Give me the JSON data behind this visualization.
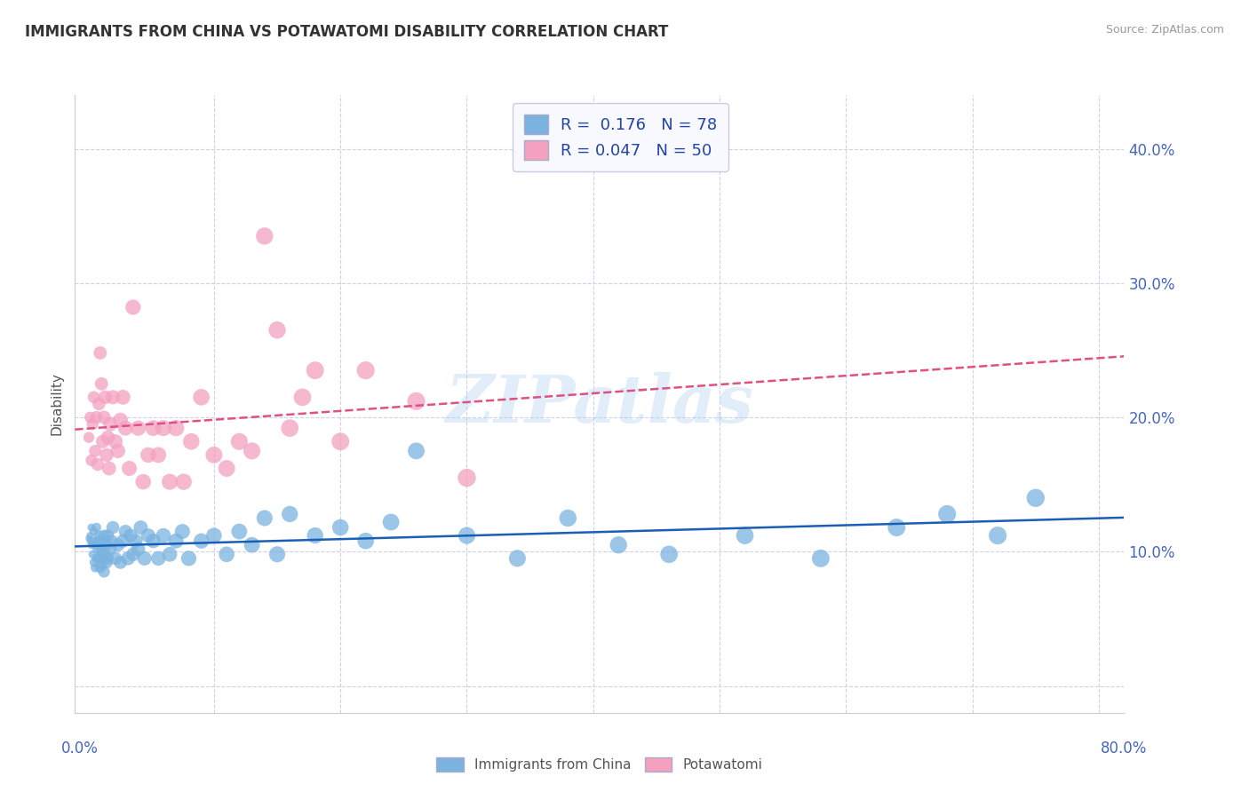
{
  "title": "IMMIGRANTS FROM CHINA VS POTAWATOMI DISABILITY CORRELATION CHART",
  "source": "Source: ZipAtlas.com",
  "ylabel": "Disability",
  "yticks": [
    0.0,
    0.1,
    0.2,
    0.3,
    0.4
  ],
  "ytick_labels": [
    "",
    "10.0%",
    "20.0%",
    "30.0%",
    "40.0%"
  ],
  "xticks": [
    0.0,
    0.1,
    0.2,
    0.3,
    0.4,
    0.5,
    0.6,
    0.7,
    0.8
  ],
  "xlim": [
    -0.01,
    0.82
  ],
  "ylim": [
    -0.02,
    0.44
  ],
  "watermark": "ZIPatlas",
  "series": [
    {
      "name": "Immigrants from China",
      "R": 0.176,
      "N": 78,
      "color": "#7ab3e0",
      "line_color": "#1a5fb4",
      "line_style": "solid",
      "x": [
        0.001,
        0.002,
        0.002,
        0.003,
        0.003,
        0.004,
        0.004,
        0.005,
        0.005,
        0.006,
        0.006,
        0.007,
        0.007,
        0.008,
        0.008,
        0.009,
        0.009,
        0.01,
        0.01,
        0.011,
        0.011,
        0.012,
        0.012,
        0.013,
        0.013,
        0.014,
        0.014,
        0.015,
        0.015,
        0.016,
        0.016,
        0.018,
        0.019,
        0.02,
        0.022,
        0.024,
        0.026,
        0.028,
        0.03,
        0.032,
        0.034,
        0.036,
        0.038,
        0.04,
        0.042,
        0.045,
        0.048,
        0.052,
        0.056,
        0.06,
        0.065,
        0.07,
        0.075,
        0.08,
        0.09,
        0.1,
        0.11,
        0.12,
        0.13,
        0.14,
        0.15,
        0.16,
        0.18,
        0.2,
        0.22,
        0.24,
        0.26,
        0.3,
        0.34,
        0.38,
        0.42,
        0.46,
        0.52,
        0.58,
        0.64,
        0.68,
        0.72,
        0.75
      ],
      "y": [
        0.11,
        0.108,
        0.112,
        0.105,
        0.118,
        0.098,
        0.108,
        0.092,
        0.115,
        0.088,
        0.105,
        0.095,
        0.118,
        0.102,
        0.108,
        0.095,
        0.112,
        0.088,
        0.108,
        0.1,
        0.09,
        0.105,
        0.095,
        0.112,
        0.085,
        0.108,
        0.098,
        0.105,
        0.092,
        0.112,
        0.095,
        0.102,
        0.108,
        0.118,
        0.095,
        0.105,
        0.092,
        0.108,
        0.115,
        0.095,
        0.112,
        0.098,
        0.108,
        0.102,
        0.118,
        0.095,
        0.112,
        0.108,
        0.095,
        0.112,
        0.098,
        0.108,
        0.115,
        0.095,
        0.108,
        0.112,
        0.098,
        0.115,
        0.105,
        0.125,
        0.098,
        0.128,
        0.112,
        0.118,
        0.108,
        0.122,
        0.175,
        0.112,
        0.095,
        0.125,
        0.105,
        0.098,
        0.112,
        0.095,
        0.118,
        0.128,
        0.112,
        0.14
      ],
      "sizes": [
        30,
        35,
        35,
        40,
        40,
        45,
        45,
        50,
        50,
        55,
        55,
        60,
        60,
        65,
        65,
        70,
        70,
        75,
        75,
        80,
        80,
        85,
        85,
        90,
        90,
        90,
        95,
        95,
        100,
        100,
        100,
        105,
        105,
        110,
        110,
        115,
        115,
        120,
        120,
        125,
        125,
        125,
        130,
        130,
        130,
        135,
        135,
        140,
        140,
        145,
        145,
        150,
        150,
        155,
        155,
        160,
        160,
        165,
        165,
        170,
        170,
        175,
        175,
        180,
        180,
        185,
        185,
        190,
        190,
        195,
        195,
        200,
        200,
        205,
        205,
        210,
        210,
        215
      ]
    },
    {
      "name": "Potawatomi",
      "R": 0.047,
      "N": 50,
      "color": "#f4a0be",
      "line_color": "#e05080",
      "line_style": "dashed",
      "x": [
        0.001,
        0.002,
        0.003,
        0.004,
        0.005,
        0.006,
        0.007,
        0.008,
        0.009,
        0.01,
        0.011,
        0.012,
        0.013,
        0.014,
        0.015,
        0.016,
        0.017,
        0.018,
        0.02,
        0.022,
        0.024,
        0.026,
        0.028,
        0.03,
        0.033,
        0.036,
        0.04,
        0.044,
        0.048,
        0.052,
        0.056,
        0.06,
        0.065,
        0.07,
        0.076,
        0.082,
        0.09,
        0.1,
        0.11,
        0.12,
        0.13,
        0.14,
        0.15,
        0.16,
        0.17,
        0.18,
        0.2,
        0.22,
        0.26,
        0.3
      ],
      "y": [
        0.185,
        0.2,
        0.168,
        0.195,
        0.215,
        0.175,
        0.2,
        0.165,
        0.21,
        0.248,
        0.225,
        0.182,
        0.2,
        0.215,
        0.172,
        0.185,
        0.162,
        0.195,
        0.215,
        0.182,
        0.175,
        0.198,
        0.215,
        0.192,
        0.162,
        0.282,
        0.192,
        0.152,
        0.172,
        0.192,
        0.172,
        0.192,
        0.152,
        0.192,
        0.152,
        0.182,
        0.215,
        0.172,
        0.162,
        0.182,
        0.175,
        0.335,
        0.265,
        0.192,
        0.215,
        0.235,
        0.182,
        0.235,
        0.212,
        0.155
      ],
      "sizes": [
        80,
        85,
        90,
        95,
        100,
        100,
        105,
        110,
        110,
        115,
        115,
        120,
        120,
        125,
        125,
        130,
        130,
        135,
        135,
        140,
        140,
        145,
        145,
        150,
        150,
        155,
        155,
        160,
        160,
        165,
        165,
        170,
        170,
        175,
        175,
        180,
        180,
        185,
        185,
        190,
        190,
        195,
        195,
        200,
        200,
        205,
        205,
        210,
        210,
        215
      ]
    }
  ],
  "background_color": "#ffffff",
  "grid_color": "#d0d0e8",
  "title_color": "#333333",
  "axis_label_color": "#4466bb",
  "legend_bg": "#f8f8ff"
}
